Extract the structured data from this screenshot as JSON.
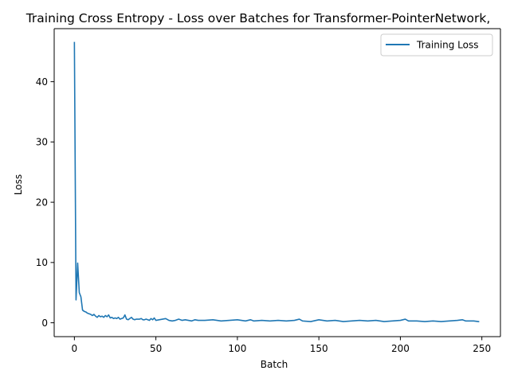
{
  "chart_data": {
    "type": "line",
    "title": "Training Cross Entropy - Loss over Batches for Transformer-PointerNetwork,",
    "xlabel": "Batch",
    "ylabel": "Loss",
    "xlim": [
      -12.4,
      261.4
    ],
    "ylim": [
      -2.3,
      48.8
    ],
    "xticks": [
      0,
      50,
      100,
      150,
      200,
      250
    ],
    "yticks": [
      0,
      10,
      20,
      30,
      40
    ],
    "grid": false,
    "legend_position": "upper right",
    "series": [
      {
        "name": "Training Loss",
        "color": "#1f77b4",
        "x": [
          0,
          1,
          2,
          3,
          4,
          5,
          6,
          7,
          8,
          9,
          10,
          11,
          12,
          13,
          14,
          15,
          16,
          17,
          18,
          19,
          20,
          21,
          22,
          23,
          24,
          25,
          26,
          27,
          28,
          29,
          30,
          31,
          32,
          33,
          34,
          35,
          36,
          37,
          38,
          39,
          40,
          41,
          42,
          43,
          44,
          45,
          46,
          47,
          48,
          49,
          50,
          52,
          54,
          56,
          58,
          60,
          62,
          64,
          66,
          68,
          70,
          72,
          74,
          76,
          78,
          80,
          85,
          90,
          95,
          100,
          105,
          108,
          110,
          115,
          120,
          125,
          130,
          135,
          138,
          140,
          145,
          150,
          155,
          160,
          165,
          170,
          175,
          180,
          185,
          190,
          195,
          200,
          203,
          205,
          210,
          215,
          220,
          225,
          230,
          235,
          238,
          240,
          245,
          248
        ],
        "y": [
          46.5,
          3.8,
          9.9,
          5.0,
          4.3,
          2.1,
          1.9,
          1.8,
          1.6,
          1.5,
          1.4,
          1.2,
          1.4,
          1.1,
          0.9,
          1.2,
          1.0,
          1.1,
          0.9,
          1.2,
          1.0,
          1.3,
          0.8,
          0.9,
          0.7,
          0.8,
          0.7,
          0.9,
          0.6,
          0.7,
          0.8,
          1.3,
          0.6,
          0.5,
          0.7,
          0.9,
          0.6,
          0.5,
          0.6,
          0.6,
          0.6,
          0.7,
          0.5,
          0.5,
          0.6,
          0.5,
          0.4,
          0.7,
          0.5,
          0.8,
          0.4,
          0.5,
          0.6,
          0.7,
          0.4,
          0.3,
          0.4,
          0.6,
          0.4,
          0.5,
          0.4,
          0.3,
          0.5,
          0.4,
          0.4,
          0.4,
          0.5,
          0.3,
          0.4,
          0.5,
          0.3,
          0.5,
          0.3,
          0.4,
          0.3,
          0.4,
          0.3,
          0.4,
          0.6,
          0.3,
          0.2,
          0.5,
          0.3,
          0.4,
          0.2,
          0.3,
          0.4,
          0.3,
          0.4,
          0.2,
          0.3,
          0.4,
          0.6,
          0.3,
          0.3,
          0.2,
          0.3,
          0.2,
          0.3,
          0.4,
          0.5,
          0.3,
          0.3,
          0.2
        ]
      }
    ]
  }
}
